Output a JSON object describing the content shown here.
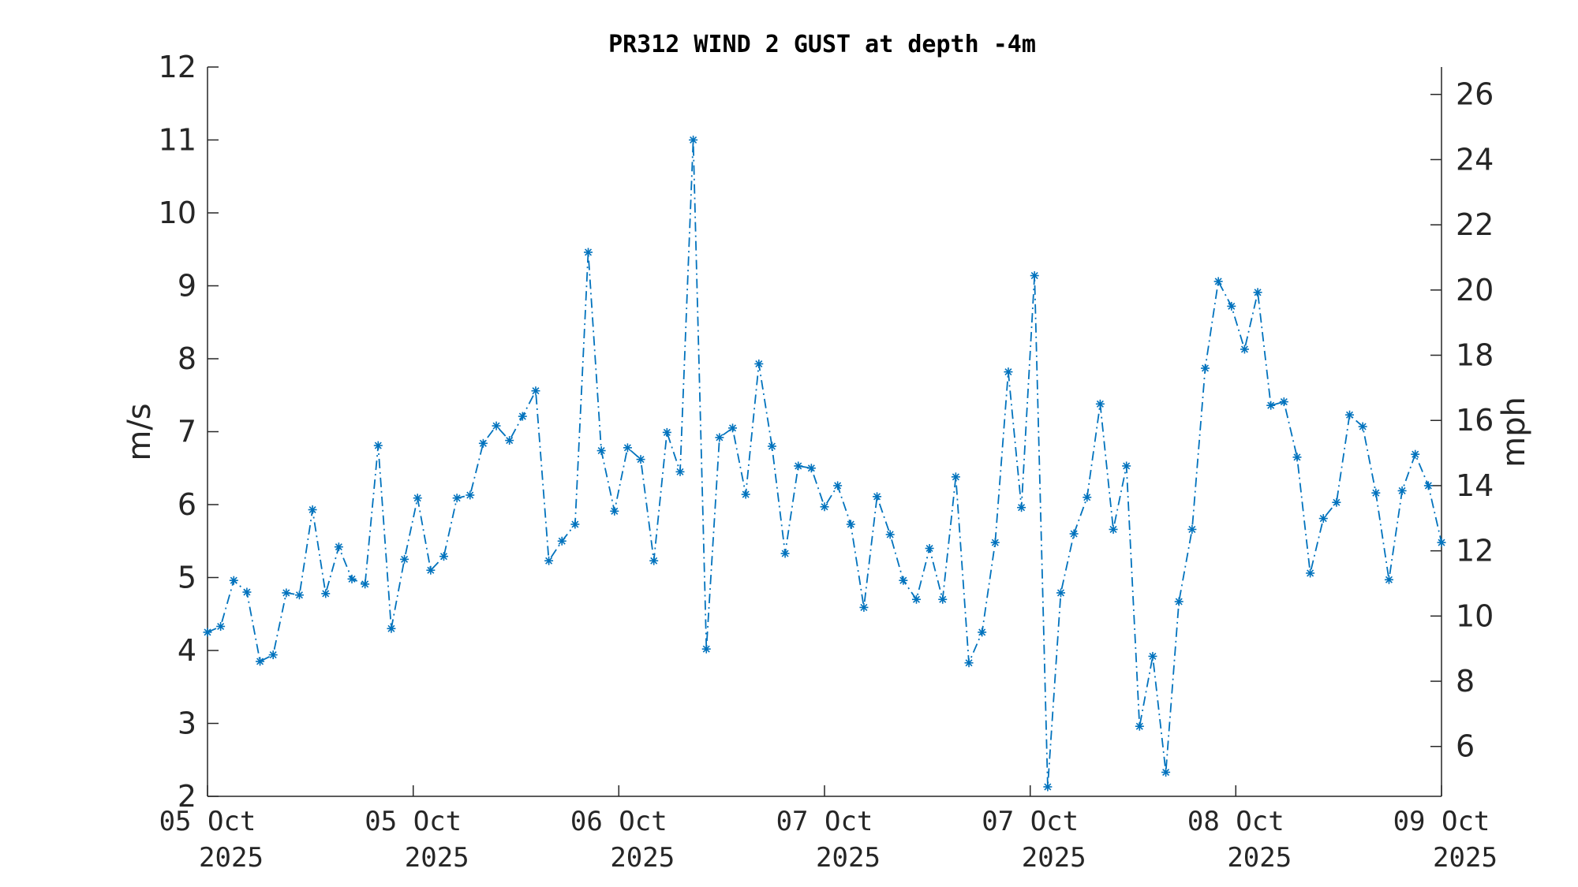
{
  "chart_data": {
    "type": "line",
    "title": "PR312 WIND 2 GUST at depth -4m",
    "ylabel": "m/s",
    "ylabel_right": "mph",
    "ylim": [
      2,
      12
    ],
    "yticks": [
      2,
      3,
      4,
      5,
      6,
      7,
      8,
      9,
      10,
      11,
      12
    ],
    "ylim_right": [
      4.47,
      26.84
    ],
    "yticks_right": [
      6,
      8,
      10,
      12,
      14,
      16,
      18,
      20,
      22,
      24,
      26
    ],
    "xlim": [
      0,
      94
    ],
    "xtick_positions": [
      0,
      15.67,
      31.33,
      47,
      62.67,
      78.33,
      94
    ],
    "xtick_labels": [
      [
        "05 Oct",
        "2025"
      ],
      [
        "05 Oct",
        "2025"
      ],
      [
        "06 Oct",
        "2025"
      ],
      [
        "07 Oct",
        "2025"
      ],
      [
        "07 Oct",
        "2025"
      ],
      [
        "08 Oct",
        "2025"
      ],
      [
        "09 Oct",
        "2025"
      ]
    ],
    "series_color": "#0072bd",
    "marker": "asterisk",
    "line_style": "dash-dot",
    "grid": false,
    "series": [
      {
        "x": [
          0,
          1,
          2,
          3,
          4,
          5,
          6,
          7,
          8,
          9,
          10,
          11,
          12,
          13,
          14,
          15,
          16,
          17,
          18,
          19,
          20,
          21,
          22,
          23,
          24,
          25,
          26,
          27,
          28,
          29,
          30,
          31,
          32,
          33,
          34,
          35,
          36,
          37,
          38,
          39,
          40,
          41,
          42,
          43,
          44,
          45,
          46,
          47,
          48,
          49,
          50,
          51,
          52,
          53,
          54,
          55,
          56,
          57,
          58,
          59,
          60,
          61,
          62,
          63,
          64,
          65,
          66,
          67,
          68,
          69,
          70,
          71,
          72,
          73,
          74,
          75,
          76,
          77,
          78,
          79,
          80,
          81,
          82,
          83,
          84,
          85,
          86,
          87,
          88,
          89,
          90,
          91,
          92,
          93,
          94
        ],
        "values": [
          4.25,
          4.33,
          4.96,
          4.8,
          3.85,
          3.94,
          4.79,
          4.76,
          5.93,
          4.78,
          5.42,
          4.98,
          4.91,
          6.81,
          4.3,
          5.25,
          6.09,
          5.1,
          5.29,
          6.09,
          6.13,
          6.84,
          7.08,
          6.88,
          7.21,
          7.56,
          5.23,
          5.5,
          5.73,
          9.46,
          6.74,
          5.91,
          6.78,
          6.62,
          5.23,
          6.99,
          6.45,
          11.0,
          4.02,
          6.92,
          7.05,
          6.14,
          7.93,
          6.8,
          5.33,
          6.53,
          6.5,
          5.97,
          6.26,
          5.73,
          4.59,
          6.11,
          5.59,
          4.96,
          4.7,
          5.4,
          4.7,
          6.38,
          3.83,
          4.25,
          5.48,
          7.82,
          5.96,
          9.14,
          2.13,
          4.79,
          5.6,
          6.1,
          7.38,
          5.66,
          6.53,
          2.96,
          3.92,
          2.33,
          4.67,
          5.66,
          7.87,
          9.06,
          8.72,
          8.13,
          8.91,
          7.36,
          7.41,
          6.65,
          5.06,
          5.81,
          6.03,
          7.23,
          7.07,
          6.16,
          4.97,
          6.19,
          6.69,
          6.26,
          5.48
        ]
      }
    ]
  }
}
